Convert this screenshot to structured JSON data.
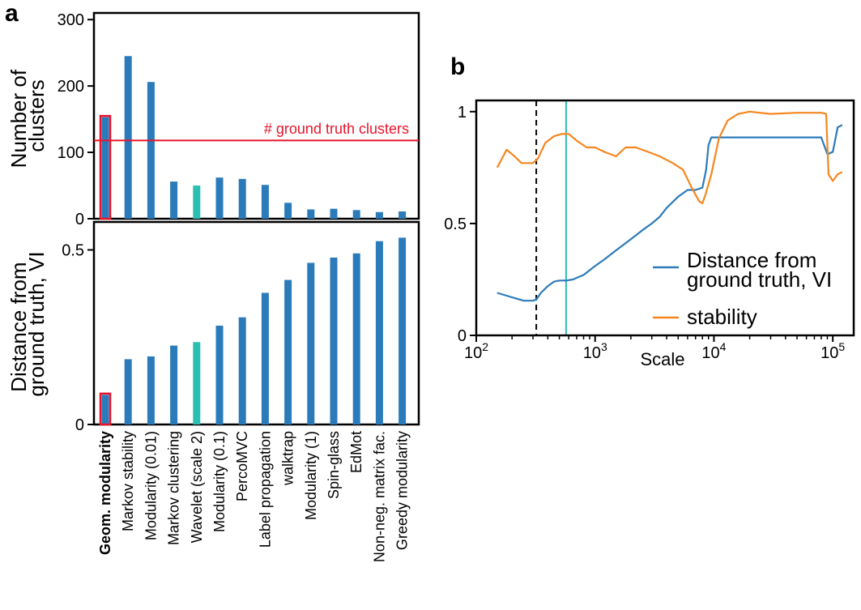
{
  "panels": {
    "a": {
      "label": "a"
    },
    "b": {
      "label": "b"
    }
  },
  "colors": {
    "bar": "#2b7bba",
    "highlight": "#2bbfb3",
    "red": "#e8142b",
    "vi": "#2b7bba",
    "stability": "#f5861f",
    "scale_line": "#2bbfb3"
  },
  "chart_data": [
    {
      "type": "bar",
      "panel": "a-top",
      "categories": [
        "Geom. modularity",
        "Markov stability",
        "Modularity (0.01)",
        "Markov clustering",
        "Wavelet (scale 2)",
        "Modularity  (0.1)",
        "PercoMVC",
        "Label propagation",
        "walktrap",
        "Modularity (1)",
        "Spin-glass",
        "EdMot",
        "Non-neg. matrix fac.",
        "Greedy modularity"
      ],
      "values": [
        153,
        245,
        206,
        56,
        50,
        62,
        60,
        51,
        24,
        14,
        15,
        13,
        10,
        11
      ],
      "ylabel": "Number of clusters",
      "yticks": [
        0,
        100,
        200,
        300
      ],
      "ylim": [
        0,
        310
      ],
      "highlight_index": 4,
      "boxed_index": 0,
      "reference_line": {
        "value": 118,
        "label": "# ground truth clusters"
      }
    },
    {
      "type": "bar",
      "panel": "a-bottom",
      "categories": [
        "Geom. modularity",
        "Markov stability",
        "Modularity (0.01)",
        "Markov clustering",
        "Wavelet (scale 2)",
        "Modularity  (0.1)",
        "PercoMVC",
        "Label propagation",
        "walktrap",
        "Modularity (1)",
        "Spin-glass",
        "EdMot",
        "Non-neg. matrix fac.",
        "Greedy modularity"
      ],
      "values": [
        0.085,
        0.187,
        0.195,
        0.226,
        0.236,
        0.283,
        0.307,
        0.377,
        0.414,
        0.463,
        0.478,
        0.49,
        0.525,
        0.535
      ],
      "ylabel": "Distance from ground truth, VI",
      "yticks": [
        0,
        0.5
      ],
      "ytick_labels": [
        "0",
        "0.5"
      ],
      "ylim": [
        0,
        0.58
      ],
      "highlight_index": 4,
      "boxed_index": 0,
      "bold_category_index": 0
    },
    {
      "type": "line",
      "panel": "b",
      "xlabel": "Scale",
      "xscale": "log",
      "xlim": [
        100,
        150000
      ],
      "ylim": [
        0,
        1.05
      ],
      "xticks": [
        100,
        1000,
        10000,
        100000
      ],
      "yticks": [
        0,
        0.5,
        1
      ],
      "ytick_labels": [
        "0",
        "0.5",
        "1"
      ],
      "vlines": [
        {
          "x": 320,
          "style": "dashed"
        },
        {
          "x": 570,
          "style": "solid"
        }
      ],
      "legend": {
        "position": "right",
        "entries": [
          "Distance from ground truth, VI",
          "stability"
        ]
      },
      "series": [
        {
          "name": "Distance from ground truth, VI",
          "x": [
            150,
            200,
            250,
            300,
            320,
            350,
            400,
            450,
            500,
            570,
            650,
            800,
            1000,
            1200,
            1500,
            2000,
            2500,
            3000,
            3500,
            4000,
            5000,
            6000,
            7000,
            8000,
            8600,
            9000,
            9500,
            12000,
            20000,
            50000,
            80000,
            90000,
            100000,
            110000,
            120000
          ],
          "y": [
            0.19,
            0.17,
            0.155,
            0.155,
            0.16,
            0.19,
            0.22,
            0.24,
            0.245,
            0.245,
            0.25,
            0.27,
            0.31,
            0.34,
            0.38,
            0.43,
            0.47,
            0.5,
            0.53,
            0.57,
            0.62,
            0.65,
            0.65,
            0.66,
            0.74,
            0.85,
            0.885,
            0.885,
            0.885,
            0.885,
            0.885,
            0.81,
            0.82,
            0.93,
            0.94
          ]
        },
        {
          "name": "stability",
          "x": [
            150,
            180,
            210,
            240,
            270,
            300,
            330,
            380,
            450,
            520,
            600,
            700,
            850,
            1000,
            1200,
            1500,
            1800,
            2200,
            2800,
            3500,
            4500,
            5500,
            6500,
            7500,
            8000,
            8500,
            9500,
            11000,
            13000,
            16000,
            20000,
            30000,
            50000,
            80000,
            88000,
            92000,
            100000,
            110000,
            120000
          ],
          "y": [
            0.75,
            0.83,
            0.8,
            0.77,
            0.77,
            0.77,
            0.79,
            0.86,
            0.89,
            0.9,
            0.9,
            0.87,
            0.84,
            0.84,
            0.82,
            0.8,
            0.84,
            0.84,
            0.82,
            0.8,
            0.77,
            0.74,
            0.66,
            0.6,
            0.59,
            0.63,
            0.72,
            0.88,
            0.96,
            0.99,
            1.0,
            0.99,
            0.995,
            0.995,
            0.99,
            0.72,
            0.69,
            0.72,
            0.73
          ]
        }
      ]
    }
  ]
}
